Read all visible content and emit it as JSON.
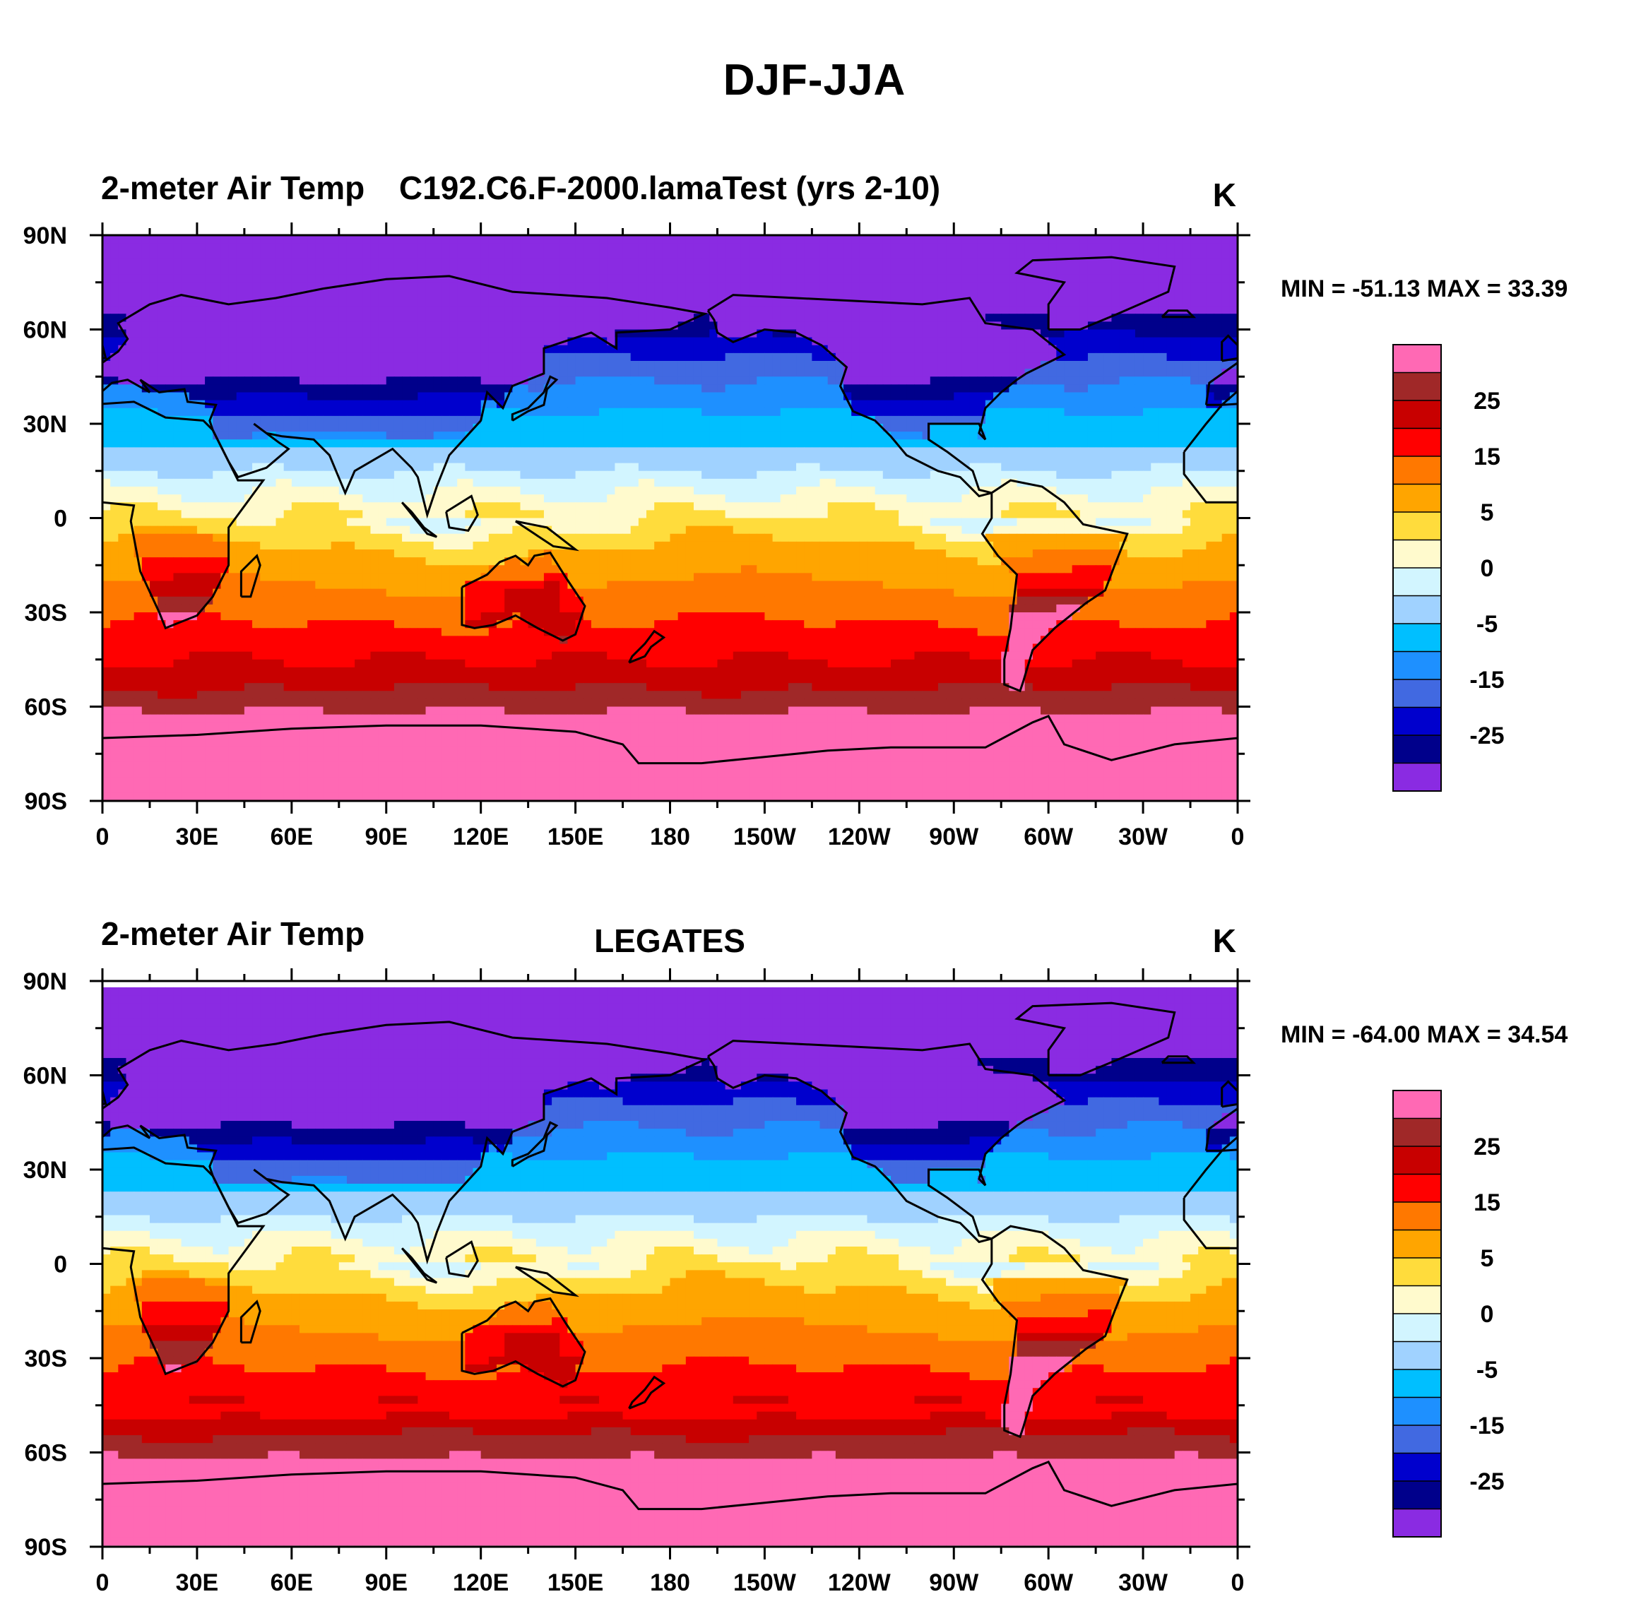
{
  "title": "DJF-JJA",
  "colorbar": {
    "levels": [
      -35,
      -30,
      -25,
      -20,
      -15,
      -10,
      -5,
      -2,
      0,
      2,
      5,
      10,
      15,
      20,
      25,
      30
    ],
    "colors": [
      "#8a2be2",
      "#00008b",
      "#0000cd",
      "#4169e1",
      "#1e90ff",
      "#00bfff",
      "#a0d2ff",
      "#d2f5ff",
      "#fffacd",
      "#ffdc3c",
      "#ffa500",
      "#ff7800",
      "#ff0000",
      "#c80000",
      "#a02828",
      "#ff69b4"
    ],
    "labels": [
      "25",
      "15",
      "5",
      "0",
      "-5",
      "-15",
      "-25"
    ]
  },
  "icons": {
    "coastline-line": "#000000"
  },
  "axes": {
    "x_ticks": [
      "0",
      "30E",
      "60E",
      "90E",
      "120E",
      "150E",
      "180",
      "150W",
      "120W",
      "90W",
      "60W",
      "30W",
      "0"
    ],
    "y_ticks": [
      "90N",
      "60N",
      "30N",
      "0",
      "30S",
      "60S",
      "90S"
    ]
  },
  "chart_data": [
    {
      "type": "heatmap",
      "title_left": "2-meter Air Temp",
      "title_center": "C192.C6.F-2000.lamaTest (yrs 2-10)",
      "title_right": "K",
      "stats": "MIN = -51.13 MAX =  33.39",
      "x_range": [
        0,
        360
      ],
      "y_range": [
        -90,
        90
      ],
      "variant": "model"
    },
    {
      "type": "heatmap",
      "title_left": "2-meter Air Temp",
      "title_center": "LEGATES",
      "title_right": "K",
      "stats": "MIN = -64.00 MAX =  34.54",
      "x_range": [
        0,
        360
      ],
      "y_range": [
        -90,
        90
      ],
      "variant": "obs"
    }
  ]
}
